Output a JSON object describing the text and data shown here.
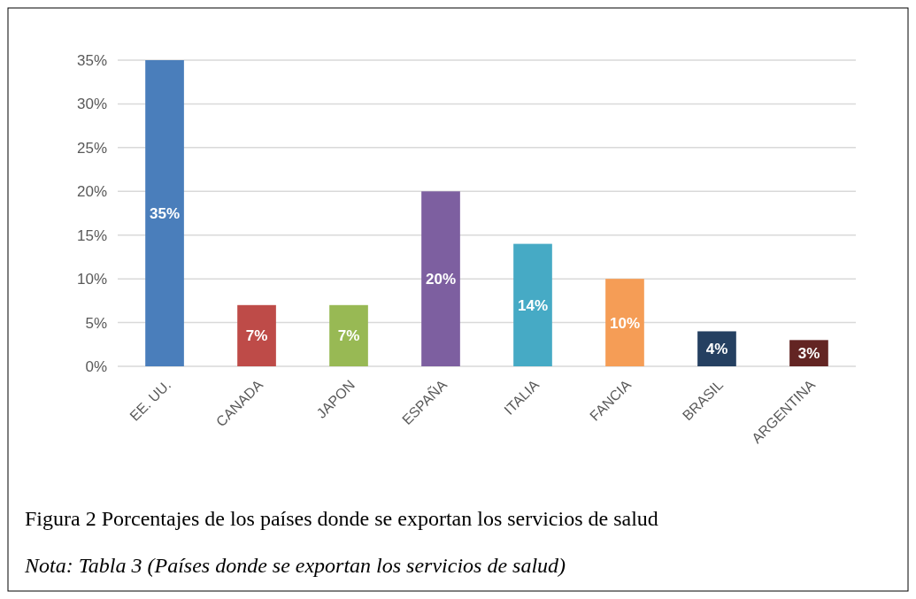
{
  "chart_data": {
    "type": "bar",
    "title": "Figura 2 Porcentajes de los países donde se exportan los servicios de salud",
    "annotations": [
      "Nota: Tabla 3 (Países donde se exportan los servicios de salud)"
    ],
    "categories": [
      "EE. UU.",
      "CANADA",
      "JAPON",
      "ESPAÑA",
      "ITALIA",
      "FANCIA",
      "BRASIL",
      "ARGENTINA"
    ],
    "values": [
      35,
      7,
      7,
      20,
      14,
      10,
      4,
      3
    ],
    "value_labels": [
      "35%",
      "7%",
      "7%",
      "20%",
      "14%",
      "10%",
      "4%",
      "3%"
    ],
    "colors": [
      "#4a7ebb",
      "#be4b48",
      "#98b954",
      "#7d5fa0",
      "#46aac5",
      "#f59d56",
      "#254061",
      "#632523"
    ],
    "ylim": [
      0,
      35
    ],
    "yticks": [
      {
        "value": 0,
        "label": "0%"
      },
      {
        "value": 5,
        "label": "5%"
      },
      {
        "value": 10,
        "label": "10%"
      },
      {
        "value": 15,
        "label": "15%"
      },
      {
        "value": 20,
        "label": "20%"
      },
      {
        "value": 25,
        "label": "25%"
      },
      {
        "value": 30,
        "label": "30%"
      },
      {
        "value": 35,
        "label": "35%"
      }
    ],
    "grid": "y"
  }
}
